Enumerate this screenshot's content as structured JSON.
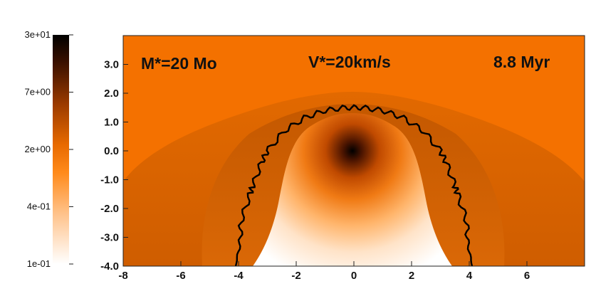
{
  "chart_data": {
    "type": "heatmap",
    "title": "",
    "xlabel": "",
    "ylabel": "",
    "xlim": [
      -8,
      8
    ],
    "ylim": [
      -4,
      4
    ],
    "x_ticks": [
      -8,
      -6,
      -4,
      -2,
      0,
      2,
      4,
      6
    ],
    "y_ticks": [
      "3.0",
      "2.0",
      "1.0",
      "0.0",
      "-1.0",
      "-2.0",
      "-3.0",
      "-4.0"
    ],
    "annotations": {
      "mass": "M*=20 Mo",
      "velocity": "V*=20km/s",
      "time": "8.8 Myr"
    },
    "colorbar": {
      "scale": "log",
      "range": [
        0.1,
        30
      ],
      "tick_labels": [
        "3e+01",
        "7e+00",
        "2e+00",
        "4e-01",
        "1e-01"
      ],
      "colormap": [
        "#ffffff",
        "#ffd5ad",
        "#ff8c1e",
        "#f47100",
        "#b54400",
        "#5a1a00",
        "#000000"
      ]
    },
    "field_values": {
      "ambient": 2.0,
      "outer_bow_shell": 1.5,
      "inner_shell": 0.9,
      "wind_bubble_core": 30,
      "wind_bubble_tail": 0.1
    },
    "discontinuity_contour": {
      "x": [
        -4.1,
        -3.95,
        -3.9,
        -3.6,
        -3.5,
        -3.2,
        -3.0,
        -2.4,
        -1.7,
        -1.0,
        -0.3,
        0.3,
        1.0,
        1.7,
        2.4,
        3.0,
        3.2,
        3.5,
        3.6,
        3.9,
        3.95,
        4.1
      ],
      "y": [
        -4.0,
        -3.2,
        -2.4,
        -1.5,
        -1.2,
        -0.4,
        0.0,
        0.7,
        1.15,
        1.4,
        1.5,
        1.5,
        1.4,
        1.15,
        0.7,
        0.0,
        -0.4,
        -1.2,
        -1.5,
        -2.4,
        -3.2,
        -4.0
      ]
    },
    "colors": {
      "ambient": "#f47100",
      "contour": "#000000"
    }
  }
}
